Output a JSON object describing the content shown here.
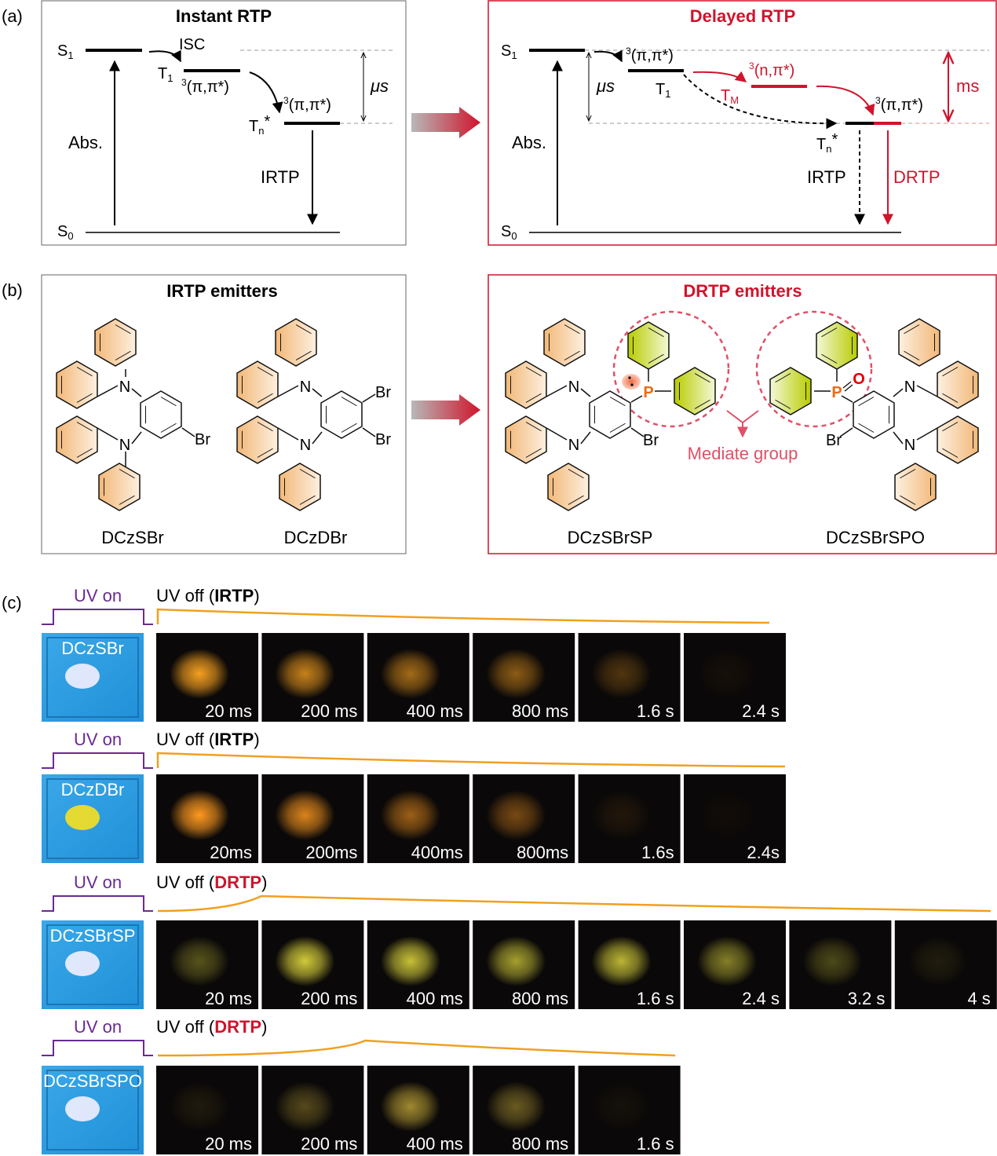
{
  "colors": {
    "accent_red": "#d0142c",
    "mediate_pink": "#e05068",
    "uv_on_purple": "#6a2a90",
    "decay_orange": "#f0a020",
    "carbazole_fill": "#f5c890",
    "phenyl_fill": "#c8dc20",
    "phosphorus": "#f06a10"
  },
  "panel_a": {
    "label": "(a)",
    "instant": {
      "title": "Instant RTP",
      "S1": "S",
      "S1_sub": "1",
      "S0": "S",
      "S0_sub": "0",
      "T1": "T",
      "T1_sub": "1",
      "Tn": "T",
      "Tn_sub": "n",
      "Tn_star": "*",
      "isc": "ISC",
      "state_T1": "(π,π*)",
      "state_T1_sup": "3",
      "state_Tn": "(π,π*)",
      "state_Tn_sup": "3",
      "abs": "Abs.",
      "timescale": "μs",
      "emission": "IRTP"
    },
    "delayed": {
      "title": "Delayed RTP",
      "S1": "S",
      "S1_sub": "1",
      "S0": "S",
      "S0_sub": "0",
      "T1": "T",
      "T1_sub": "1",
      "TM": "T",
      "TM_sub": "M",
      "Tn": "T",
      "Tn_sub": "n",
      "Tn_star": "*",
      "state_T1": "(π,π*)",
      "state_T1_sup": "3",
      "state_TM": "(n,π*)",
      "state_TM_sup": "3",
      "state_Tn": "(π,π*)",
      "state_Tn_sup": "3",
      "abs": "Abs.",
      "timescale_fast": "μs",
      "timescale_slow": "ms",
      "emission_instant": "IRTP",
      "emission_delayed": "DRTP"
    }
  },
  "panel_b": {
    "label": "(b)",
    "irtp": {
      "title": "IRTP emitters",
      "molecules": [
        "DCzSBr",
        "DCzDBr"
      ]
    },
    "drtp": {
      "title": "DRTP emitters",
      "molecules": [
        "DCzSBrSP",
        "DCzSBrSPO"
      ],
      "mediate": "Mediate group"
    },
    "atoms": {
      "N": "N",
      "Br": "Br",
      "P": "P",
      "O": "O"
    }
  },
  "panel_c": {
    "label": "(c)",
    "uv_on": "UV on",
    "uv_off_prefix": "UV off (",
    "uv_off_suffix": ")",
    "rows": [
      {
        "sample": "DCzSBr",
        "type": "IRTP",
        "glow": "#f5a020",
        "frames": [
          {
            "label": "20 ms",
            "level": 1.0
          },
          {
            "label": "200 ms",
            "level": 0.8
          },
          {
            "label": "400 ms",
            "level": 0.65
          },
          {
            "label": "800 ms",
            "level": 0.55
          },
          {
            "label": "1.6 s",
            "level": 0.3
          },
          {
            "label": "2.4 s",
            "level": 0.05
          }
        ]
      },
      {
        "sample": "DCzDBr",
        "type": "IRTP",
        "glow": "#ff9a20",
        "frames": [
          {
            "label": "20ms",
            "level": 1.0
          },
          {
            "label": "200ms",
            "level": 0.85
          },
          {
            "label": "400ms",
            "level": 0.6
          },
          {
            "label": "800ms",
            "level": 0.45
          },
          {
            "label": "1.6s",
            "level": 0.1
          },
          {
            "label": "2.4s",
            "level": 0.03
          }
        ]
      },
      {
        "sample": "DCzSBrSP",
        "type": "DRTP",
        "glow": "#e8e040",
        "frames": [
          {
            "label": "20 ms",
            "level": 0.35
          },
          {
            "label": "200 ms",
            "level": 0.9
          },
          {
            "label": "400 ms",
            "level": 0.85
          },
          {
            "label": "800 ms",
            "level": 0.7
          },
          {
            "label": "1.6 s",
            "level": 0.8
          },
          {
            "label": "2.4 s",
            "level": 0.55
          },
          {
            "label": "3.2 s",
            "level": 0.3
          },
          {
            "label": "4 s",
            "level": 0.1
          }
        ]
      },
      {
        "sample": "DCzSBrSPO",
        "type": "DRTP",
        "glow": "#e0c040",
        "frames": [
          {
            "label": "20 ms",
            "level": 0.1
          },
          {
            "label": "200 ms",
            "level": 0.35
          },
          {
            "label": "400 ms",
            "level": 0.7
          },
          {
            "label": "800 ms",
            "level": 0.45
          },
          {
            "label": "1.6 s",
            "level": 0.05
          }
        ]
      }
    ]
  }
}
